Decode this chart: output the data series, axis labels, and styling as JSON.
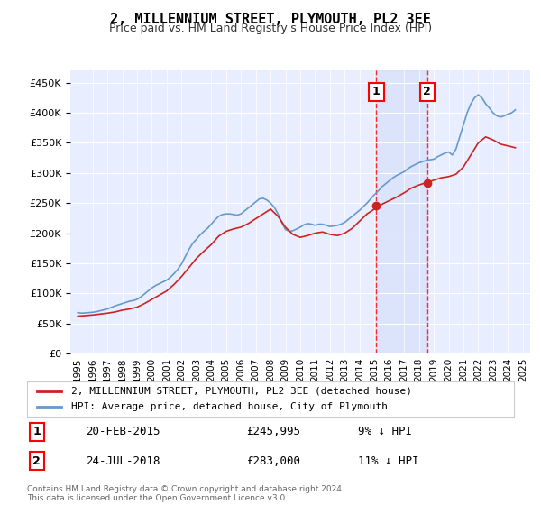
{
  "title": "2, MILLENNIUM STREET, PLYMOUTH, PL2 3EE",
  "subtitle": "Price paid vs. HM Land Registry's House Price Index (HPI)",
  "ylabel_ticks": [
    "£0",
    "£50K",
    "£100K",
    "£150K",
    "£200K",
    "£250K",
    "£300K",
    "£350K",
    "£400K",
    "£450K"
  ],
  "ylim": [
    0,
    470000
  ],
  "yticks": [
    0,
    50000,
    100000,
    150000,
    200000,
    250000,
    300000,
    350000,
    400000,
    450000
  ],
  "xlim_start": 1994.5,
  "xlim_end": 2025.5,
  "bg_color": "#f0f4ff",
  "plot_bg_color": "#e8eeff",
  "line1_color": "#cc2222",
  "line2_color": "#6699cc",
  "legend1_label": "2, MILLENNIUM STREET, PLYMOUTH, PL2 3EE (detached house)",
  "legend2_label": "HPI: Average price, detached house, City of Plymouth",
  "annotation1": {
    "x": 2015.13,
    "price": 245995,
    "label": "1",
    "date": "20-FEB-2015",
    "price_str": "£245,995",
    "pct_str": "9% ↓ HPI"
  },
  "annotation2": {
    "x": 2018.56,
    "price": 283000,
    "label": "2",
    "date": "24-JUL-2018",
    "price_str": "£283,000",
    "pct_str": "11% ↓ HPI"
  },
  "footnote": "Contains HM Land Registry data © Crown copyright and database right 2024.\nThis data is licensed under the Open Government Licence v3.0.",
  "hpi_data": {
    "years": [
      1995.0,
      1995.25,
      1995.5,
      1995.75,
      1996.0,
      1996.25,
      1996.5,
      1996.75,
      1997.0,
      1997.25,
      1997.5,
      1997.75,
      1998.0,
      1998.25,
      1998.5,
      1998.75,
      1999.0,
      1999.25,
      1999.5,
      1999.75,
      2000.0,
      2000.25,
      2000.5,
      2000.75,
      2001.0,
      2001.25,
      2001.5,
      2001.75,
      2002.0,
      2002.25,
      2002.5,
      2002.75,
      2003.0,
      2003.25,
      2003.5,
      2003.75,
      2004.0,
      2004.25,
      2004.5,
      2004.75,
      2005.0,
      2005.25,
      2005.5,
      2005.75,
      2006.0,
      2006.25,
      2006.5,
      2006.75,
      2007.0,
      2007.25,
      2007.5,
      2007.75,
      2008.0,
      2008.25,
      2008.5,
      2008.75,
      2009.0,
      2009.25,
      2009.5,
      2009.75,
      2010.0,
      2010.25,
      2010.5,
      2010.75,
      2011.0,
      2011.25,
      2011.5,
      2011.75,
      2012.0,
      2012.25,
      2012.5,
      2012.75,
      2013.0,
      2013.25,
      2013.5,
      2013.75,
      2014.0,
      2014.25,
      2014.5,
      2014.75,
      2015.0,
      2015.25,
      2015.5,
      2015.75,
      2016.0,
      2016.25,
      2016.5,
      2016.75,
      2017.0,
      2017.25,
      2017.5,
      2017.75,
      2018.0,
      2018.25,
      2018.5,
      2018.75,
      2019.0,
      2019.25,
      2019.5,
      2019.75,
      2020.0,
      2020.25,
      2020.5,
      2020.75,
      2021.0,
      2021.25,
      2021.5,
      2021.75,
      2022.0,
      2022.25,
      2022.5,
      2022.75,
      2023.0,
      2023.25,
      2023.5,
      2023.75,
      2024.0,
      2024.25,
      2024.5
    ],
    "values": [
      68000,
      67000,
      67500,
      68000,
      68500,
      69500,
      71000,
      72500,
      74000,
      76500,
      79000,
      81000,
      83000,
      85000,
      87000,
      88000,
      90000,
      94000,
      99000,
      104000,
      109000,
      113000,
      116000,
      119000,
      122000,
      127000,
      133000,
      140000,
      149000,
      161000,
      173000,
      183000,
      190000,
      197000,
      203000,
      208000,
      215000,
      222000,
      228000,
      231000,
      232000,
      232000,
      231000,
      230000,
      232000,
      237000,
      242000,
      247000,
      252000,
      257000,
      258000,
      255000,
      250000,
      243000,
      232000,
      218000,
      206000,
      203000,
      204000,
      207000,
      210000,
      214000,
      216000,
      215000,
      213000,
      215000,
      215000,
      213000,
      211000,
      212000,
      213000,
      215000,
      218000,
      223000,
      228000,
      233000,
      238000,
      244000,
      250000,
      257000,
      264000,
      270000,
      277000,
      282000,
      287000,
      292000,
      296000,
      299000,
      302000,
      307000,
      311000,
      314000,
      317000,
      319000,
      321000,
      322000,
      323000,
      327000,
      330000,
      333000,
      335000,
      330000,
      340000,
      360000,
      380000,
      400000,
      415000,
      425000,
      430000,
      425000,
      415000,
      408000,
      400000,
      395000,
      393000,
      395000,
      398000,
      400000,
      405000
    ]
  },
  "price_data": {
    "years": [
      2015.13,
      2018.56
    ],
    "values": [
      245995,
      283000
    ]
  },
  "price_line_data": {
    "years": [
      1995.0,
      1995.5,
      1996.0,
      1996.5,
      1997.0,
      1997.5,
      1998.0,
      1998.5,
      1999.0,
      1999.5,
      2000.0,
      2000.5,
      2001.0,
      2001.5,
      2002.0,
      2002.5,
      2003.0,
      2003.5,
      2004.0,
      2004.5,
      2005.0,
      2005.5,
      2006.0,
      2006.5,
      2007.0,
      2007.5,
      2008.0,
      2008.5,
      2009.0,
      2009.5,
      2010.0,
      2010.5,
      2011.0,
      2011.5,
      2012.0,
      2012.5,
      2013.0,
      2013.5,
      2014.0,
      2014.5,
      2015.0,
      2015.5,
      2016.0,
      2016.5,
      2017.0,
      2017.5,
      2018.0,
      2018.5,
      2019.0,
      2019.5,
      2020.0,
      2020.5,
      2021.0,
      2021.5,
      2022.0,
      2022.5,
      2023.0,
      2023.5,
      2024.0,
      2024.5
    ],
    "values": [
      62000,
      63000,
      64000,
      65500,
      67000,
      69000,
      72000,
      74000,
      77000,
      83000,
      90000,
      97000,
      104000,
      115000,
      128000,
      143000,
      158000,
      170000,
      181000,
      195000,
      203000,
      207000,
      210000,
      216000,
      224000,
      232000,
      240000,
      228000,
      210000,
      198000,
      193000,
      196000,
      200000,
      202000,
      198000,
      196000,
      200000,
      208000,
      220000,
      232000,
      240000,
      248000,
      254000,
      260000,
      267000,
      275000,
      280000,
      284000,
      288000,
      292000,
      294000,
      298000,
      310000,
      330000,
      350000,
      360000,
      355000,
      348000,
      345000,
      342000
    ]
  }
}
